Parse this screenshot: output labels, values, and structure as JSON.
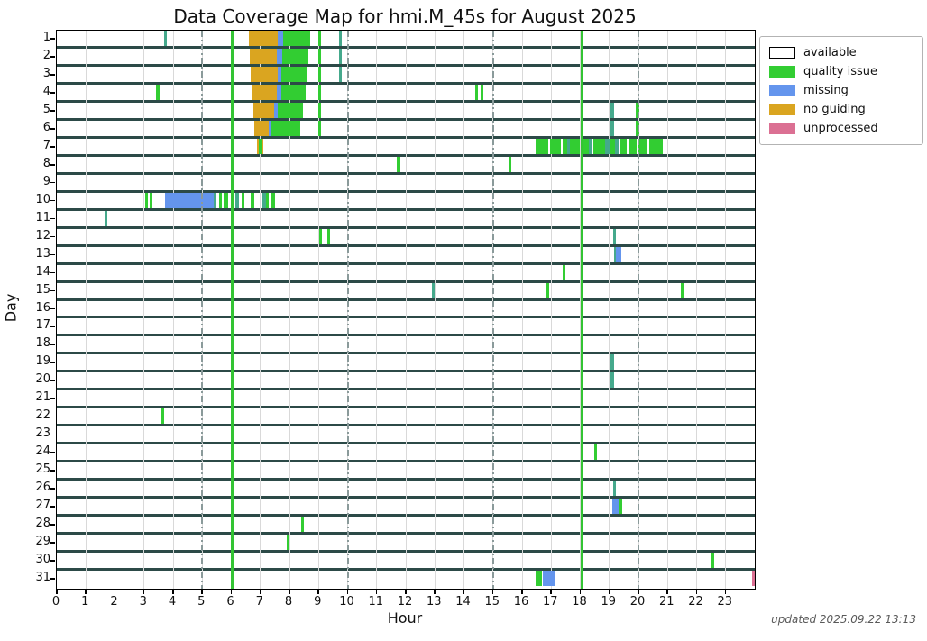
{
  "title": "Data Coverage Map for hmi.M_45s for August 2025",
  "xlabel": "Hour",
  "ylabel": "Day",
  "footer": "updated 2025.09.22 13:13",
  "colors": {
    "available": "#ffffff",
    "quality": "#32CD32",
    "missing": "#6495ED",
    "noguiding": "#DAA520",
    "unprocessed": "#DB7093",
    "mixed": "#45A98C",
    "row_border": "#2C4A47",
    "grid_minor": "#d9d9d9",
    "grid_dashdot": "#8A9A9A",
    "vline_green": "#33C433",
    "spine": "#000000"
  },
  "legend": [
    {
      "key": "available",
      "label": "available"
    },
    {
      "key": "quality",
      "label": "quality issue"
    },
    {
      "key": "missing",
      "label": "missing"
    },
    {
      "key": "noguiding",
      "label": "no guiding"
    },
    {
      "key": "unprocessed",
      "label": "unprocessed"
    }
  ],
  "chart_data": {
    "type": "heatmap",
    "subtype": "coverage-timeline",
    "title": "Data Coverage Map for hmi.M_45s for August 2025",
    "xlabel": "Hour",
    "ylabel": "Day",
    "x_range": [
      0,
      24
    ],
    "x_ticks": [
      0,
      1,
      2,
      3,
      4,
      5,
      6,
      7,
      8,
      9,
      10,
      11,
      12,
      13,
      14,
      15,
      16,
      17,
      18,
      19,
      20,
      21,
      22,
      23
    ],
    "days": [
      1,
      2,
      3,
      4,
      5,
      6,
      7,
      8,
      9,
      10,
      11,
      12,
      13,
      14,
      15,
      16,
      17,
      18,
      19,
      20,
      21,
      22,
      23,
      24,
      25,
      26,
      27,
      28,
      29,
      30,
      31
    ],
    "hour_gridlines": [
      1,
      2,
      3,
      4,
      5,
      6,
      7,
      8,
      9,
      10,
      11,
      12,
      13,
      14,
      15,
      16,
      17,
      18,
      19,
      20,
      21,
      22,
      23
    ],
    "dashdot_hours": [
      5,
      10,
      15,
      20
    ],
    "green_vline_hours": [
      6.02,
      18.05
    ],
    "background_status": "available",
    "segments": [
      [
        1,
        3.7,
        3.78,
        "mixed"
      ],
      [
        1,
        6.59,
        7.6,
        "noguiding"
      ],
      [
        1,
        7.6,
        7.78,
        "missing"
      ],
      [
        1,
        7.78,
        8.7,
        "quality"
      ],
      [
        1,
        9.0,
        9.1,
        "quality"
      ],
      [
        1,
        9.7,
        9.8,
        "mixed"
      ],
      [
        2,
        6.64,
        7.58,
        "noguiding"
      ],
      [
        2,
        7.58,
        7.75,
        "missing"
      ],
      [
        2,
        7.75,
        8.64,
        "quality"
      ],
      [
        2,
        9.0,
        9.1,
        "quality"
      ],
      [
        2,
        9.7,
        9.8,
        "mixed"
      ],
      [
        3,
        6.67,
        7.6,
        "noguiding"
      ],
      [
        3,
        7.6,
        7.72,
        "missing"
      ],
      [
        3,
        7.72,
        8.6,
        "quality"
      ],
      [
        3,
        9.0,
        9.1,
        "quality"
      ],
      [
        3,
        9.7,
        9.8,
        "mixed"
      ],
      [
        4,
        3.42,
        3.52,
        "quality"
      ],
      [
        4,
        6.7,
        7.57,
        "noguiding"
      ],
      [
        4,
        7.57,
        7.72,
        "missing"
      ],
      [
        4,
        7.72,
        8.55,
        "quality"
      ],
      [
        4,
        9.0,
        9.1,
        "quality"
      ],
      [
        4,
        14.38,
        14.48,
        "quality"
      ],
      [
        4,
        14.58,
        14.68,
        "quality"
      ],
      [
        5,
        6.75,
        7.47,
        "noguiding"
      ],
      [
        5,
        7.47,
        7.6,
        "missing"
      ],
      [
        5,
        7.6,
        8.48,
        "quality"
      ],
      [
        5,
        9.0,
        9.1,
        "quality"
      ],
      [
        5,
        19.05,
        19.15,
        "mixed"
      ],
      [
        5,
        19.92,
        20.02,
        "quality"
      ],
      [
        6,
        6.8,
        7.29,
        "noguiding"
      ],
      [
        6,
        7.29,
        7.39,
        "missing"
      ],
      [
        6,
        7.39,
        8.37,
        "quality"
      ],
      [
        6,
        9.0,
        9.1,
        "quality"
      ],
      [
        6,
        19.05,
        19.15,
        "mixed"
      ],
      [
        6,
        19.92,
        20.02,
        "quality"
      ],
      [
        7,
        6.87,
        6.96,
        "noguiding"
      ],
      [
        7,
        6.96,
        7.04,
        "quality"
      ],
      [
        7,
        7.04,
        7.11,
        "noguiding"
      ],
      [
        7,
        16.45,
        16.9,
        "quality"
      ],
      [
        7,
        16.95,
        17.32,
        "quality"
      ],
      [
        7,
        17.4,
        17.55,
        "quality"
      ],
      [
        7,
        17.55,
        17.65,
        "mixed"
      ],
      [
        7,
        17.65,
        18.0,
        "quality"
      ],
      [
        7,
        18.05,
        18.3,
        "quality"
      ],
      [
        7,
        18.3,
        18.42,
        "mixed"
      ],
      [
        7,
        18.45,
        18.85,
        "quality"
      ],
      [
        7,
        18.85,
        19.0,
        "mixed"
      ],
      [
        7,
        19.0,
        19.2,
        "quality"
      ],
      [
        7,
        19.2,
        19.32,
        "mixed"
      ],
      [
        7,
        19.35,
        19.6,
        "quality"
      ],
      [
        7,
        19.68,
        19.95,
        "quality"
      ],
      [
        7,
        20.0,
        20.3,
        "quality"
      ],
      [
        7,
        20.38,
        20.85,
        "quality"
      ],
      [
        8,
        11.7,
        11.8,
        "quality"
      ],
      [
        8,
        15.52,
        15.62,
        "quality"
      ],
      [
        10,
        3.04,
        3.12,
        "quality"
      ],
      [
        10,
        3.2,
        3.28,
        "quality"
      ],
      [
        10,
        3.72,
        5.4,
        "missing"
      ],
      [
        10,
        5.4,
        5.5,
        "mixed"
      ],
      [
        10,
        5.57,
        5.66,
        "quality"
      ],
      [
        10,
        5.75,
        5.9,
        "quality"
      ],
      [
        10,
        6.15,
        6.27,
        "mixed"
      ],
      [
        10,
        6.35,
        6.46,
        "quality"
      ],
      [
        10,
        6.68,
        6.78,
        "quality"
      ],
      [
        10,
        7.08,
        7.18,
        "mixed"
      ],
      [
        10,
        7.18,
        7.3,
        "quality"
      ],
      [
        10,
        7.38,
        7.5,
        "quality"
      ],
      [
        11,
        1.65,
        1.75,
        "mixed"
      ],
      [
        12,
        9.03,
        9.13,
        "quality"
      ],
      [
        12,
        9.3,
        9.4,
        "quality"
      ],
      [
        12,
        19.12,
        19.21,
        "mixed"
      ],
      [
        13,
        19.15,
        19.22,
        "mixed"
      ],
      [
        13,
        19.22,
        19.42,
        "missing"
      ],
      [
        14,
        17.38,
        17.48,
        "quality"
      ],
      [
        15,
        12.9,
        13.0,
        "mixed"
      ],
      [
        15,
        16.82,
        16.92,
        "quality"
      ],
      [
        15,
        21.45,
        21.55,
        "quality"
      ],
      [
        19,
        19.05,
        19.15,
        "mixed"
      ],
      [
        20,
        19.05,
        19.15,
        "mixed"
      ],
      [
        22,
        3.6,
        3.7,
        "quality"
      ],
      [
        24,
        18.48,
        18.58,
        "quality"
      ],
      [
        26,
        19.12,
        19.22,
        "mixed"
      ],
      [
        27,
        19.1,
        19.33,
        "missing"
      ],
      [
        27,
        19.33,
        19.43,
        "quality"
      ],
      [
        28,
        8.4,
        8.5,
        "quality"
      ],
      [
        29,
        7.9,
        8.0,
        "quality"
      ],
      [
        30,
        22.52,
        22.62,
        "quality"
      ],
      [
        31,
        16.48,
        16.68,
        "quality"
      ],
      [
        31,
        16.72,
        17.12,
        "missing"
      ],
      [
        31,
        23.92,
        24.0,
        "unprocessed"
      ]
    ]
  }
}
